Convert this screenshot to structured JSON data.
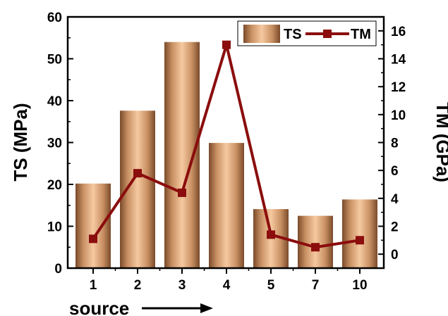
{
  "chart_data": {
    "type": "bar",
    "categories": [
      "1",
      "2",
      "3",
      "4",
      "5",
      "7",
      "10"
    ],
    "xlabel": "source",
    "series": [
      {
        "name": "TS",
        "type": "bar",
        "axis": "left",
        "values": [
          20.2,
          37.6,
          54.0,
          29.9,
          14.1,
          12.5,
          16.4
        ]
      },
      {
        "name": "TM",
        "type": "line",
        "axis": "right",
        "values": [
          1.1,
          5.8,
          4.4,
          15.0,
          1.4,
          0.5,
          1.0
        ]
      }
    ],
    "y_left": {
      "label": "TS (MPa)",
      "ylim": [
        0,
        60
      ],
      "ticks": [
        "0",
        "10",
        "20",
        "30",
        "40",
        "50",
        "60"
      ]
    },
    "y_right": {
      "label": "TM (GPa)",
      "ylim": [
        -1,
        17
      ],
      "ticks": [
        "0",
        "2",
        "4",
        "6",
        "8",
        "10",
        "12",
        "14",
        "16"
      ]
    },
    "legend": {
      "position": "top-right",
      "entries": [
        "TS",
        "TM"
      ]
    },
    "colors": {
      "bar_dark": "#7a4a2a",
      "bar_light": "#f6c9a0",
      "line": "#8b0d0d"
    },
    "grid": false
  }
}
